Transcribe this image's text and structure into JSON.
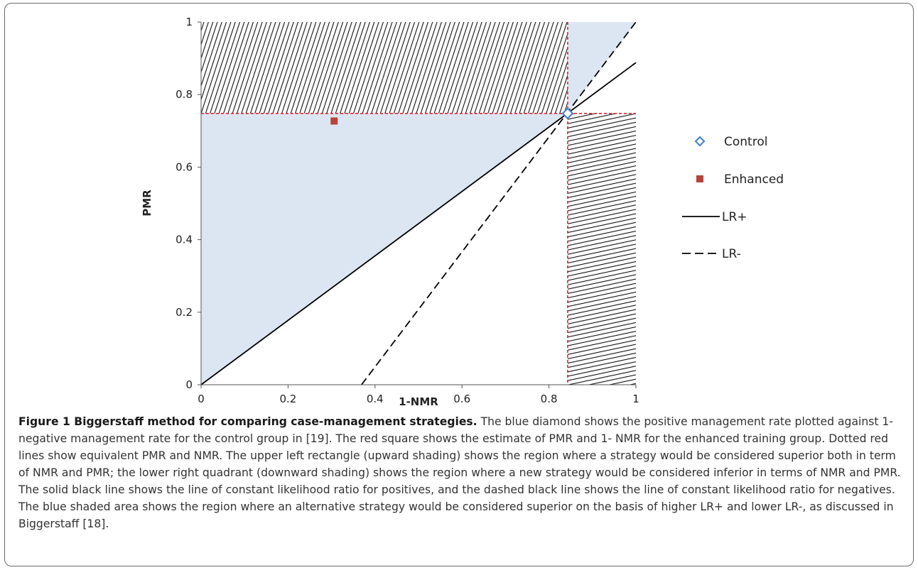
{
  "chart_data": {
    "type": "scatter",
    "xlabel": "1-NMR",
    "ylabel": "PMR",
    "xlim": [
      0,
      1
    ],
    "ylim": [
      0,
      1
    ],
    "x_ticks": [
      "0",
      "0.2",
      "0.4",
      "0.6",
      "0.8",
      "1"
    ],
    "y_ticks": [
      "0",
      "0.2",
      "0.4",
      "0.6",
      "0.8",
      "1"
    ],
    "grid": false,
    "legend_position": "right",
    "series": [
      {
        "name": "Control",
        "kind": "point",
        "marker": "diamond-open",
        "color": "#4a86c8",
        "x": [
          0.843
        ],
        "y": [
          0.748
        ]
      },
      {
        "name": "Enhanced",
        "kind": "point",
        "marker": "square",
        "color": "#b5443c",
        "x": [
          0.306
        ],
        "y": [
          0.727
        ]
      },
      {
        "name": "LR+",
        "kind": "line",
        "style": "solid",
        "color": "#000000",
        "x": [
          0,
          1
        ],
        "y": [
          0,
          0.888
        ]
      },
      {
        "name": "LR-",
        "kind": "line",
        "style": "dashed",
        "color": "#000000",
        "x": [
          0.369,
          1
        ],
        "y": [
          0,
          1
        ]
      }
    ],
    "reference_lines": {
      "x": 0.843,
      "y": 0.748,
      "color": "#e8202a",
      "style": "dotted"
    },
    "regions": {
      "blue_shaded_color": "#dce6f2",
      "upper_left_hatch": "upward",
      "lower_right_hatch": "downward"
    }
  },
  "caption": {
    "title": "Figure 1 Biggerstaff method for comparing case-management strategies.",
    "body": " The blue diamond shows the positive management rate plotted against 1- negative management rate for the control group in [19]. The red square shows the estimate of PMR and 1- NMR for the enhanced training group. Dotted red lines show equivalent PMR and NMR. The upper left rectangle (upward shading) shows the region where a strategy would be considered superior both in term of NMR and PMR; the lower right quadrant (downward shading) shows the region where a new strategy would be considered inferior in terms of NMR and PMR. The solid black line shows the line of constant likelihood ratio for positives, and the dashed black line shows the line of constant likelihood ratio for negatives. The blue shaded area shows the region where an alternative strategy would be considered superior on the basis of higher LR+ and lower LR-, as discussed in Biggerstaff [18]."
  }
}
